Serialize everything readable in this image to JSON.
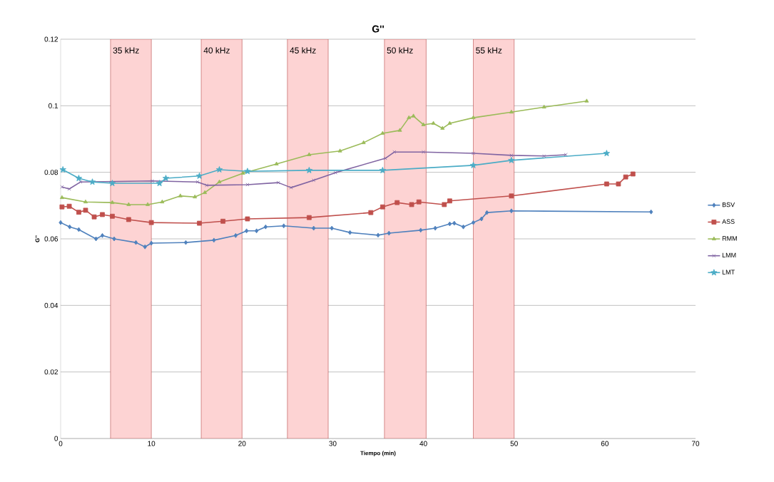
{
  "chart_data": {
    "type": "line",
    "title": "G''",
    "xlabel": "Tiempo (min)",
    "ylabel": "G''",
    "xlim": [
      0,
      70
    ],
    "ylim": [
      0,
      0.12
    ],
    "xticks": [
      0,
      10,
      20,
      30,
      40,
      50,
      60,
      70
    ],
    "yticks": [
      0,
      0.02,
      0.04,
      0.06,
      0.08,
      0.1,
      0.12
    ],
    "grid": "y",
    "legend": "right",
    "bands": [
      {
        "axis": "x",
        "from": 5.5,
        "to": 10,
        "label": "35 kHz",
        "color": "#fdd3d3"
      },
      {
        "axis": "x",
        "from": 15.5,
        "to": 20,
        "label": "40 kHz",
        "color": "#fdd3d3"
      },
      {
        "axis": "x",
        "from": 25,
        "to": 29.5,
        "label": "45 kHz",
        "color": "#fdd3d3"
      },
      {
        "axis": "x",
        "from": 35.7,
        "to": 40.3,
        "label": "50 kHz",
        "color": "#fdd3d3"
      },
      {
        "axis": "x",
        "from": 45.5,
        "to": 50,
        "label": "55 kHz",
        "color": "#fdd3d3"
      }
    ],
    "series": [
      {
        "name": "BSV",
        "color": "#4f81bd",
        "marker": "diamond",
        "x": [
          0,
          1,
          2,
          3.9,
          4.6,
          5.9,
          8.3,
          9.3,
          10,
          13.8,
          16.9,
          19.3,
          20.5,
          21.6,
          22.6,
          24.6,
          27.9,
          29.9,
          31.9,
          35,
          36.2,
          39.7,
          41.3,
          42.9,
          43.4,
          44.4,
          45.5,
          46.4,
          47,
          49.7,
          65.1
        ],
        "values": [
          0.0649,
          0.0636,
          0.0628,
          0.06,
          0.061,
          0.06,
          0.0589,
          0.0576,
          0.0587,
          0.0589,
          0.0596,
          0.061,
          0.0624,
          0.0624,
          0.0636,
          0.0639,
          0.0632,
          0.0632,
          0.0619,
          0.0611,
          0.0617,
          0.0626,
          0.0632,
          0.0645,
          0.0647,
          0.0636,
          0.0649,
          0.066,
          0.0679,
          0.0684,
          0.0681
        ]
      },
      {
        "name": "ASS",
        "color": "#c0504d",
        "marker": "square",
        "x": [
          0.15,
          0.95,
          2,
          2.75,
          3.7,
          4.6,
          5.7,
          7.5,
          10,
          15.3,
          17.9,
          20.6,
          27.4,
          34.2,
          35.5,
          37.1,
          38.7,
          39.5,
          42.3,
          42.9,
          49.7,
          60.2,
          61.5,
          62.3,
          63.1
        ],
        "values": [
          0.0696,
          0.0698,
          0.068,
          0.0686,
          0.0666,
          0.0673,
          0.0668,
          0.0658,
          0.0649,
          0.0647,
          0.0653,
          0.066,
          0.0664,
          0.0679,
          0.0696,
          0.0709,
          0.0703,
          0.0711,
          0.0703,
          0.0714,
          0.0729,
          0.0765,
          0.0765,
          0.0786,
          0.0795
        ]
      },
      {
        "name": "RMM",
        "color": "#9bbb59",
        "marker": "triangle",
        "x": [
          0.15,
          2.75,
          5.7,
          7.5,
          9.6,
          11.2,
          13.2,
          14.8,
          15.9,
          17.5,
          20.1,
          23.8,
          27.4,
          30.8,
          33.4,
          35.5,
          37.4,
          38.4,
          38.9,
          40,
          41.1,
          42.1,
          42.9,
          45.5,
          49.7,
          53.3,
          58
        ],
        "values": [
          0.0724,
          0.0711,
          0.0709,
          0.0703,
          0.0703,
          0.0711,
          0.0729,
          0.0726,
          0.0739,
          0.0771,
          0.0797,
          0.0825,
          0.0853,
          0.0864,
          0.0889,
          0.0917,
          0.0926,
          0.0964,
          0.0969,
          0.0943,
          0.0947,
          0.0932,
          0.0947,
          0.0964,
          0.0981,
          0.0996,
          0.1014
        ]
      },
      {
        "name": "LMM",
        "color": "#8064a2",
        "marker": "cross",
        "x": [
          0.15,
          0.95,
          2.2,
          10.1,
          15.1,
          16.1,
          20.6,
          24,
          25.4,
          27.9,
          30.3,
          35.8,
          36.8,
          40,
          45.5,
          49.7,
          53.3,
          55.7
        ],
        "values": [
          0.0756,
          0.075,
          0.0771,
          0.0774,
          0.0771,
          0.0761,
          0.0763,
          0.0769,
          0.0754,
          0.0776,
          0.0799,
          0.0842,
          0.0861,
          0.0861,
          0.0857,
          0.0851,
          0.0849,
          0.0853
        ]
      },
      {
        "name": "LMT",
        "color": "#4bacc6",
        "marker": "star",
        "x": [
          0.25,
          2,
          3.5,
          5.7,
          10.9,
          11.6,
          15.3,
          17.5,
          20.6,
          27.4,
          35.5,
          45.5,
          49.7,
          60.2
        ],
        "values": [
          0.0808,
          0.0782,
          0.0771,
          0.0767,
          0.0767,
          0.0782,
          0.0789,
          0.0808,
          0.0803,
          0.0806,
          0.0806,
          0.0821,
          0.0836,
          0.0857
        ]
      }
    ]
  }
}
